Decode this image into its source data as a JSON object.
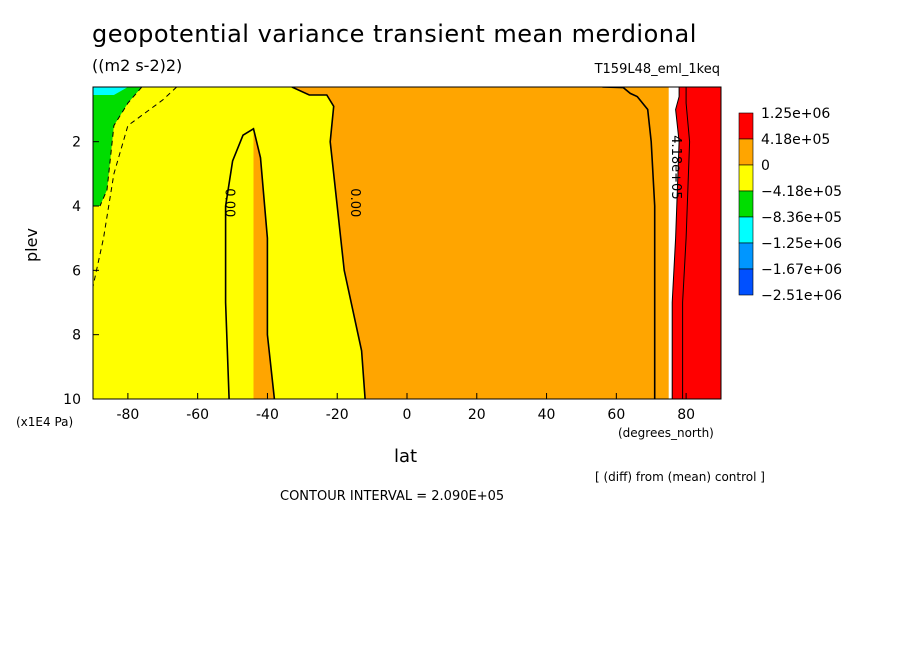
{
  "header": {
    "title": "geopotential variance transient mean merdional",
    "units": "((m2 s-2)2)",
    "experiment": "T159L48_eml_1keq"
  },
  "footer": {
    "contour_interval": "CONTOUR INTERVAL = 2.090E+05",
    "comparison": "[ (diff) from (mean) control ]"
  },
  "chart_data": {
    "type": "heatmap",
    "title": "geopotential variance transient mean merdional",
    "units": "((m2 s-2)2)",
    "xlabel": "lat",
    "xunits": "(degrees_north)",
    "ylabel": "plev",
    "yunits": "(x1E4 Pa)",
    "xlim": [
      -90,
      90
    ],
    "ylim": [
      0.3,
      10
    ],
    "y_inverted": true,
    "x_ticks": [
      -80,
      -60,
      -40,
      -20,
      0,
      20,
      40,
      60,
      80
    ],
    "y_ticks": [
      2,
      4,
      6,
      8,
      10
    ],
    "legend": {
      "placement": "right",
      "levels": [
        "1.25e+06",
        "4.18e+05",
        "0",
        "−4.18e+05",
        "−8.36e+05",
        "−1.25e+06",
        "−1.67e+06",
        "−2.51e+06"
      ],
      "colors": [
        "#ff0000",
        "#ffa500",
        "#ffff00",
        "#00dd00",
        "#00ffff",
        "#0096ff",
        "#0050ff"
      ]
    },
    "regions": [
      {
        "fill": "#ffff00",
        "points": [
          [
            -90,
            0.3
          ],
          [
            -44,
            0.3
          ],
          [
            -44,
            10
          ],
          [
            -90,
            10
          ]
        ]
      },
      {
        "fill": "#ffa500",
        "points": [
          [
            -44,
            0.3
          ],
          [
            75,
            0.3
          ],
          [
            75,
            10
          ],
          [
            -44,
            10
          ]
        ]
      },
      {
        "fill": "#ffff00",
        "points": [
          [
            -33,
            0.3
          ],
          [
            -28,
            0.55
          ],
          [
            -23,
            0.55
          ],
          [
            -21,
            0.9
          ],
          [
            -22,
            2
          ],
          [
            -20,
            4
          ],
          [
            -18,
            6
          ],
          [
            -13,
            8.5
          ],
          [
            -12,
            10
          ],
          [
            -38,
            10
          ],
          [
            -40,
            8
          ],
          [
            -40,
            5
          ],
          [
            -42,
            2.5
          ],
          [
            -44,
            1.6
          ],
          [
            -47,
            1.8
          ],
          [
            -50,
            2.6
          ],
          [
            -52,
            4
          ],
          [
            -52,
            7
          ],
          [
            -51,
            10
          ],
          [
            -44,
            10
          ],
          [
            -44,
            0.3
          ]
        ]
      },
      {
        "fill": "#ff0000",
        "points": [
          [
            78,
            0.3
          ],
          [
            90,
            0.3
          ],
          [
            90,
            10
          ],
          [
            76,
            10
          ],
          [
            76,
            7
          ],
          [
            77,
            5
          ],
          [
            78,
            2
          ],
          [
            77,
            1
          ],
          [
            78,
            0.6
          ]
        ]
      },
      {
        "fill": "#00dd00",
        "points": [
          [
            -90,
            0.3
          ],
          [
            -76,
            0.3
          ],
          [
            -80,
            0.8
          ],
          [
            -84,
            1.5
          ],
          [
            -86,
            3.5
          ],
          [
            -88,
            4
          ],
          [
            -90,
            4
          ]
        ]
      },
      {
        "fill": "#00ffff",
        "points": [
          [
            -90,
            0.3
          ],
          [
            -80,
            0.3
          ],
          [
            -84,
            0.55
          ],
          [
            -90,
            0.55
          ]
        ]
      }
    ],
    "contours": [
      {
        "level": "0.00",
        "dash": false,
        "points": [
          [
            -51,
            10
          ],
          [
            -52,
            7
          ],
          [
            -52,
            4
          ],
          [
            -50,
            2.6
          ],
          [
            -47,
            1.8
          ],
          [
            -44,
            1.6
          ],
          [
            -42,
            2.5
          ],
          [
            -40,
            5
          ],
          [
            -40,
            8
          ],
          [
            -38,
            10
          ]
        ]
      },
      {
        "level": "0.00",
        "dash": false,
        "points": [
          [
            -33,
            0.3
          ],
          [
            -28,
            0.55
          ],
          [
            -23,
            0.55
          ],
          [
            -21,
            0.9
          ],
          [
            -22,
            2
          ],
          [
            -20,
            4
          ],
          [
            -18,
            6
          ],
          [
            -13,
            8.5
          ],
          [
            -12,
            10
          ]
        ]
      },
      {
        "level": "4.18e+05",
        "dash": false,
        "points": [
          [
            56,
            0.3
          ],
          [
            62,
            0.32
          ],
          [
            64,
            0.5
          ],
          [
            66,
            0.6
          ],
          [
            69,
            1
          ],
          [
            70,
            2
          ],
          [
            71,
            4
          ],
          [
            71,
            6
          ],
          [
            71,
            8
          ],
          [
            71,
            10
          ]
        ]
      },
      {
        "level": "",
        "dash": false,
        "points": [
          [
            78,
            0.3
          ],
          [
            78,
            0.6
          ],
          [
            77,
            1
          ],
          [
            78,
            2
          ],
          [
            77,
            5
          ],
          [
            76,
            7
          ],
          [
            76,
            10
          ]
        ]
      },
      {
        "level": "",
        "dash": false,
        "points": [
          [
            80,
            0.3
          ],
          [
            80,
            0.8
          ],
          [
            81,
            2
          ],
          [
            80,
            5
          ],
          [
            79,
            7
          ],
          [
            79,
            10
          ]
        ]
      },
      {
        "level": "",
        "dash": true,
        "points": [
          [
            -66,
            0.3
          ],
          [
            -70,
            0.7
          ],
          [
            -80,
            1.5
          ],
          [
            -84,
            3
          ],
          [
            -87,
            5
          ],
          [
            -90,
            6.5
          ]
        ]
      },
      {
        "level": "",
        "dash": true,
        "points": [
          [
            -76,
            0.3
          ],
          [
            -80,
            0.8
          ],
          [
            -84,
            1.5
          ],
          [
            -86,
            3.5
          ],
          [
            -88,
            4
          ]
        ]
      }
    ],
    "contour_labels": [
      {
        "text": "0.00",
        "x": -52,
        "y": 3.9
      },
      {
        "text": "0.00",
        "x": -16,
        "y": 3.9
      },
      {
        "text": "4.18e+05",
        "x": 76,
        "y": 2.8
      }
    ]
  }
}
